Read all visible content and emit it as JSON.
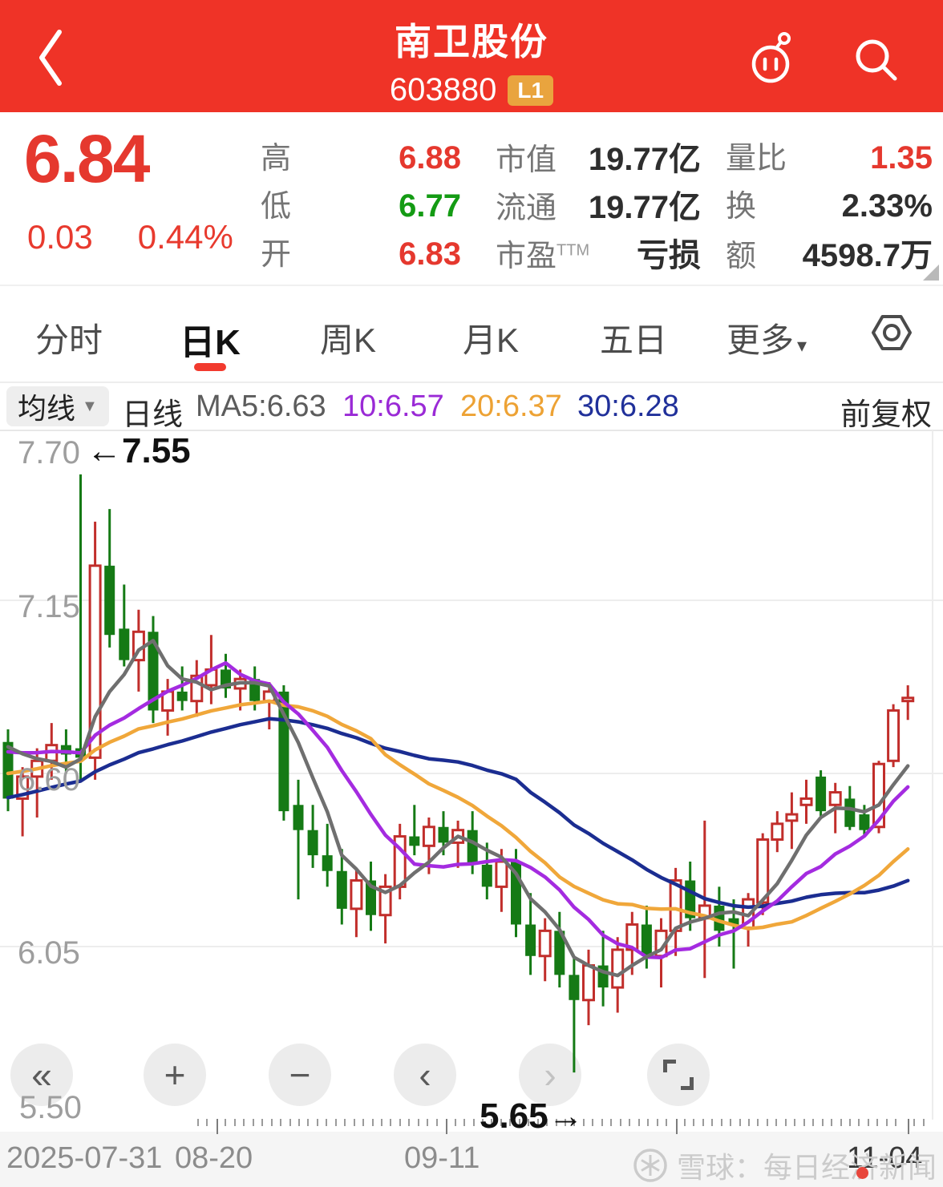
{
  "header": {
    "title": "南卫股份",
    "code": "603880",
    "level_badge": "L1"
  },
  "quote": {
    "price": "6.84",
    "change_amount": "0.03",
    "change_percent": "0.44%",
    "col1": [
      {
        "label": "高",
        "value": "6.88",
        "cls": "red"
      },
      {
        "label": "低",
        "value": "6.77",
        "cls": "green"
      },
      {
        "label": "开",
        "value": "6.83",
        "cls": "red"
      }
    ],
    "col2": [
      {
        "label": "市值",
        "value": "19.77亿"
      },
      {
        "label": "流通",
        "value": "19.77亿"
      },
      {
        "label": "市盈",
        "sup": "TTM",
        "value": "亏损"
      }
    ],
    "col3": [
      {
        "label": "量比",
        "value": "1.35",
        "cls": "red"
      },
      {
        "label": "换",
        "value": "2.33%"
      },
      {
        "label": "额",
        "value": "4598.7万"
      }
    ]
  },
  "tabs": {
    "items": [
      "分时",
      "日K",
      "周K",
      "月K",
      "五日",
      "更多"
    ],
    "active": "日K"
  },
  "ma_bar": {
    "selector_label": "均线",
    "period_label": "日线",
    "ma5_label": "MA5:6.63",
    "ma10_label": "10:6.57",
    "ma20_label": "20:6.37",
    "ma30_label": "30:6.28",
    "adjust_label": "前复权"
  },
  "chart_data": {
    "type": "candlestick",
    "title": "南卫股份 603880 日K",
    "y_axis": {
      "min": 5.5,
      "max": 7.7,
      "ticks": [
        "7.70",
        "7.15",
        "6.60",
        "6.05",
        "5.50"
      ]
    },
    "x_axis": {
      "labels": [
        "2025-07-31",
        "08-20",
        "09-11",
        "11-04"
      ]
    },
    "annotations": {
      "high_label": "←7.55",
      "low_label": "5.65→"
    },
    "ma_values": {
      "ma5": 6.63,
      "ma10": 6.57,
      "ma20": 6.37,
      "ma30": 6.28
    },
    "legend": [
      "MA5",
      "MA10",
      "MA20",
      "MA30"
    ],
    "colors": {
      "up": "#c12e2b",
      "down": "#157a15",
      "ma5": "#6f6f6f",
      "ma10": "#a42be0",
      "ma20": "#f0a73a",
      "ma30": "#1b2d91"
    },
    "candles": [
      [
        6.7,
        6.74,
        6.48,
        6.52
      ],
      [
        6.52,
        6.62,
        6.4,
        6.59
      ],
      [
        6.59,
        6.68,
        6.46,
        6.64
      ],
      [
        6.64,
        6.76,
        6.58,
        6.69
      ],
      [
        6.69,
        6.74,
        6.6,
        6.66
      ],
      [
        6.68,
        7.55,
        6.58,
        6.65
      ],
      [
        6.65,
        7.4,
        6.58,
        7.26
      ],
      [
        7.26,
        7.44,
        7.0,
        7.04
      ],
      [
        7.06,
        7.2,
        6.94,
        6.96
      ],
      [
        6.96,
        7.12,
        6.86,
        7.05
      ],
      [
        7.05,
        7.1,
        6.76,
        6.8
      ],
      [
        6.8,
        6.9,
        6.72,
        6.86
      ],
      [
        6.86,
        6.94,
        6.8,
        6.83
      ],
      [
        6.83,
        6.96,
        6.78,
        6.91
      ],
      [
        6.88,
        7.04,
        6.82,
        6.93
      ],
      [
        6.93,
        6.98,
        6.84,
        6.87
      ],
      [
        6.87,
        6.93,
        6.8,
        6.9
      ],
      [
        6.9,
        6.94,
        6.8,
        6.83
      ],
      [
        6.83,
        6.89,
        6.74,
        6.86
      ],
      [
        6.86,
        6.88,
        6.45,
        6.48
      ],
      [
        6.5,
        6.58,
        6.2,
        6.42
      ],
      [
        6.42,
        6.5,
        6.3,
        6.34
      ],
      [
        6.34,
        6.44,
        6.24,
        6.29
      ],
      [
        6.29,
        6.36,
        6.12,
        6.17
      ],
      [
        6.17,
        6.3,
        6.08,
        6.26
      ],
      [
        6.26,
        6.32,
        6.1,
        6.15
      ],
      [
        6.15,
        6.28,
        6.06,
        6.24
      ],
      [
        6.24,
        6.44,
        6.2,
        6.4
      ],
      [
        6.4,
        6.5,
        6.34,
        6.37
      ],
      [
        6.37,
        6.46,
        6.28,
        6.43
      ],
      [
        6.43,
        6.48,
        6.34,
        6.38
      ],
      [
        6.38,
        6.45,
        6.3,
        6.42
      ],
      [
        6.42,
        6.48,
        6.28,
        6.31
      ],
      [
        6.31,
        6.38,
        6.2,
        6.24
      ],
      [
        6.24,
        6.36,
        6.16,
        6.32
      ],
      [
        6.32,
        6.36,
        6.08,
        6.12
      ],
      [
        6.12,
        6.22,
        5.96,
        6.02
      ],
      [
        6.02,
        6.14,
        5.94,
        6.1
      ],
      [
        6.1,
        6.16,
        5.92,
        5.96
      ],
      [
        5.96,
        6.02,
        5.65,
        5.88
      ],
      [
        5.88,
        6.04,
        5.8,
        5.99
      ],
      [
        5.99,
        6.1,
        5.86,
        5.92
      ],
      [
        5.92,
        6.08,
        5.84,
        6.04
      ],
      [
        6.04,
        6.16,
        5.96,
        6.12
      ],
      [
        6.12,
        6.18,
        5.98,
        6.02
      ],
      [
        6.02,
        6.14,
        5.92,
        6.1
      ],
      [
        6.1,
        6.3,
        6.02,
        6.26
      ],
      [
        6.26,
        6.32,
        6.1,
        6.14
      ],
      [
        6.14,
        6.45,
        5.95,
        6.18
      ],
      [
        6.18,
        6.24,
        6.05,
        6.1
      ],
      [
        6.14,
        6.2,
        5.98,
        6.12
      ],
      [
        6.11,
        6.22,
        6.05,
        6.2
      ],
      [
        6.19,
        6.41,
        6.15,
        6.39
      ],
      [
        6.39,
        6.48,
        6.35,
        6.44
      ],
      [
        6.45,
        6.54,
        6.36,
        6.47
      ],
      [
        6.5,
        6.58,
        6.44,
        6.52
      ],
      [
        6.59,
        6.61,
        6.46,
        6.48
      ],
      [
        6.5,
        6.57,
        6.41,
        6.54
      ],
      [
        6.52,
        6.56,
        6.42,
        6.43
      ],
      [
        6.47,
        6.5,
        6.4,
        6.42
      ],
      [
        6.43,
        6.64,
        6.41,
        6.63
      ],
      [
        6.64,
        6.82,
        6.62,
        6.8
      ],
      [
        6.83,
        6.88,
        6.77,
        6.84
      ]
    ]
  },
  "controls": {
    "rewind": "«",
    "zoom_in": "+",
    "zoom_out": "−",
    "prev": "‹",
    "next": "›"
  },
  "footer": {
    "watermark": "雪球：每日经济新闻"
  }
}
